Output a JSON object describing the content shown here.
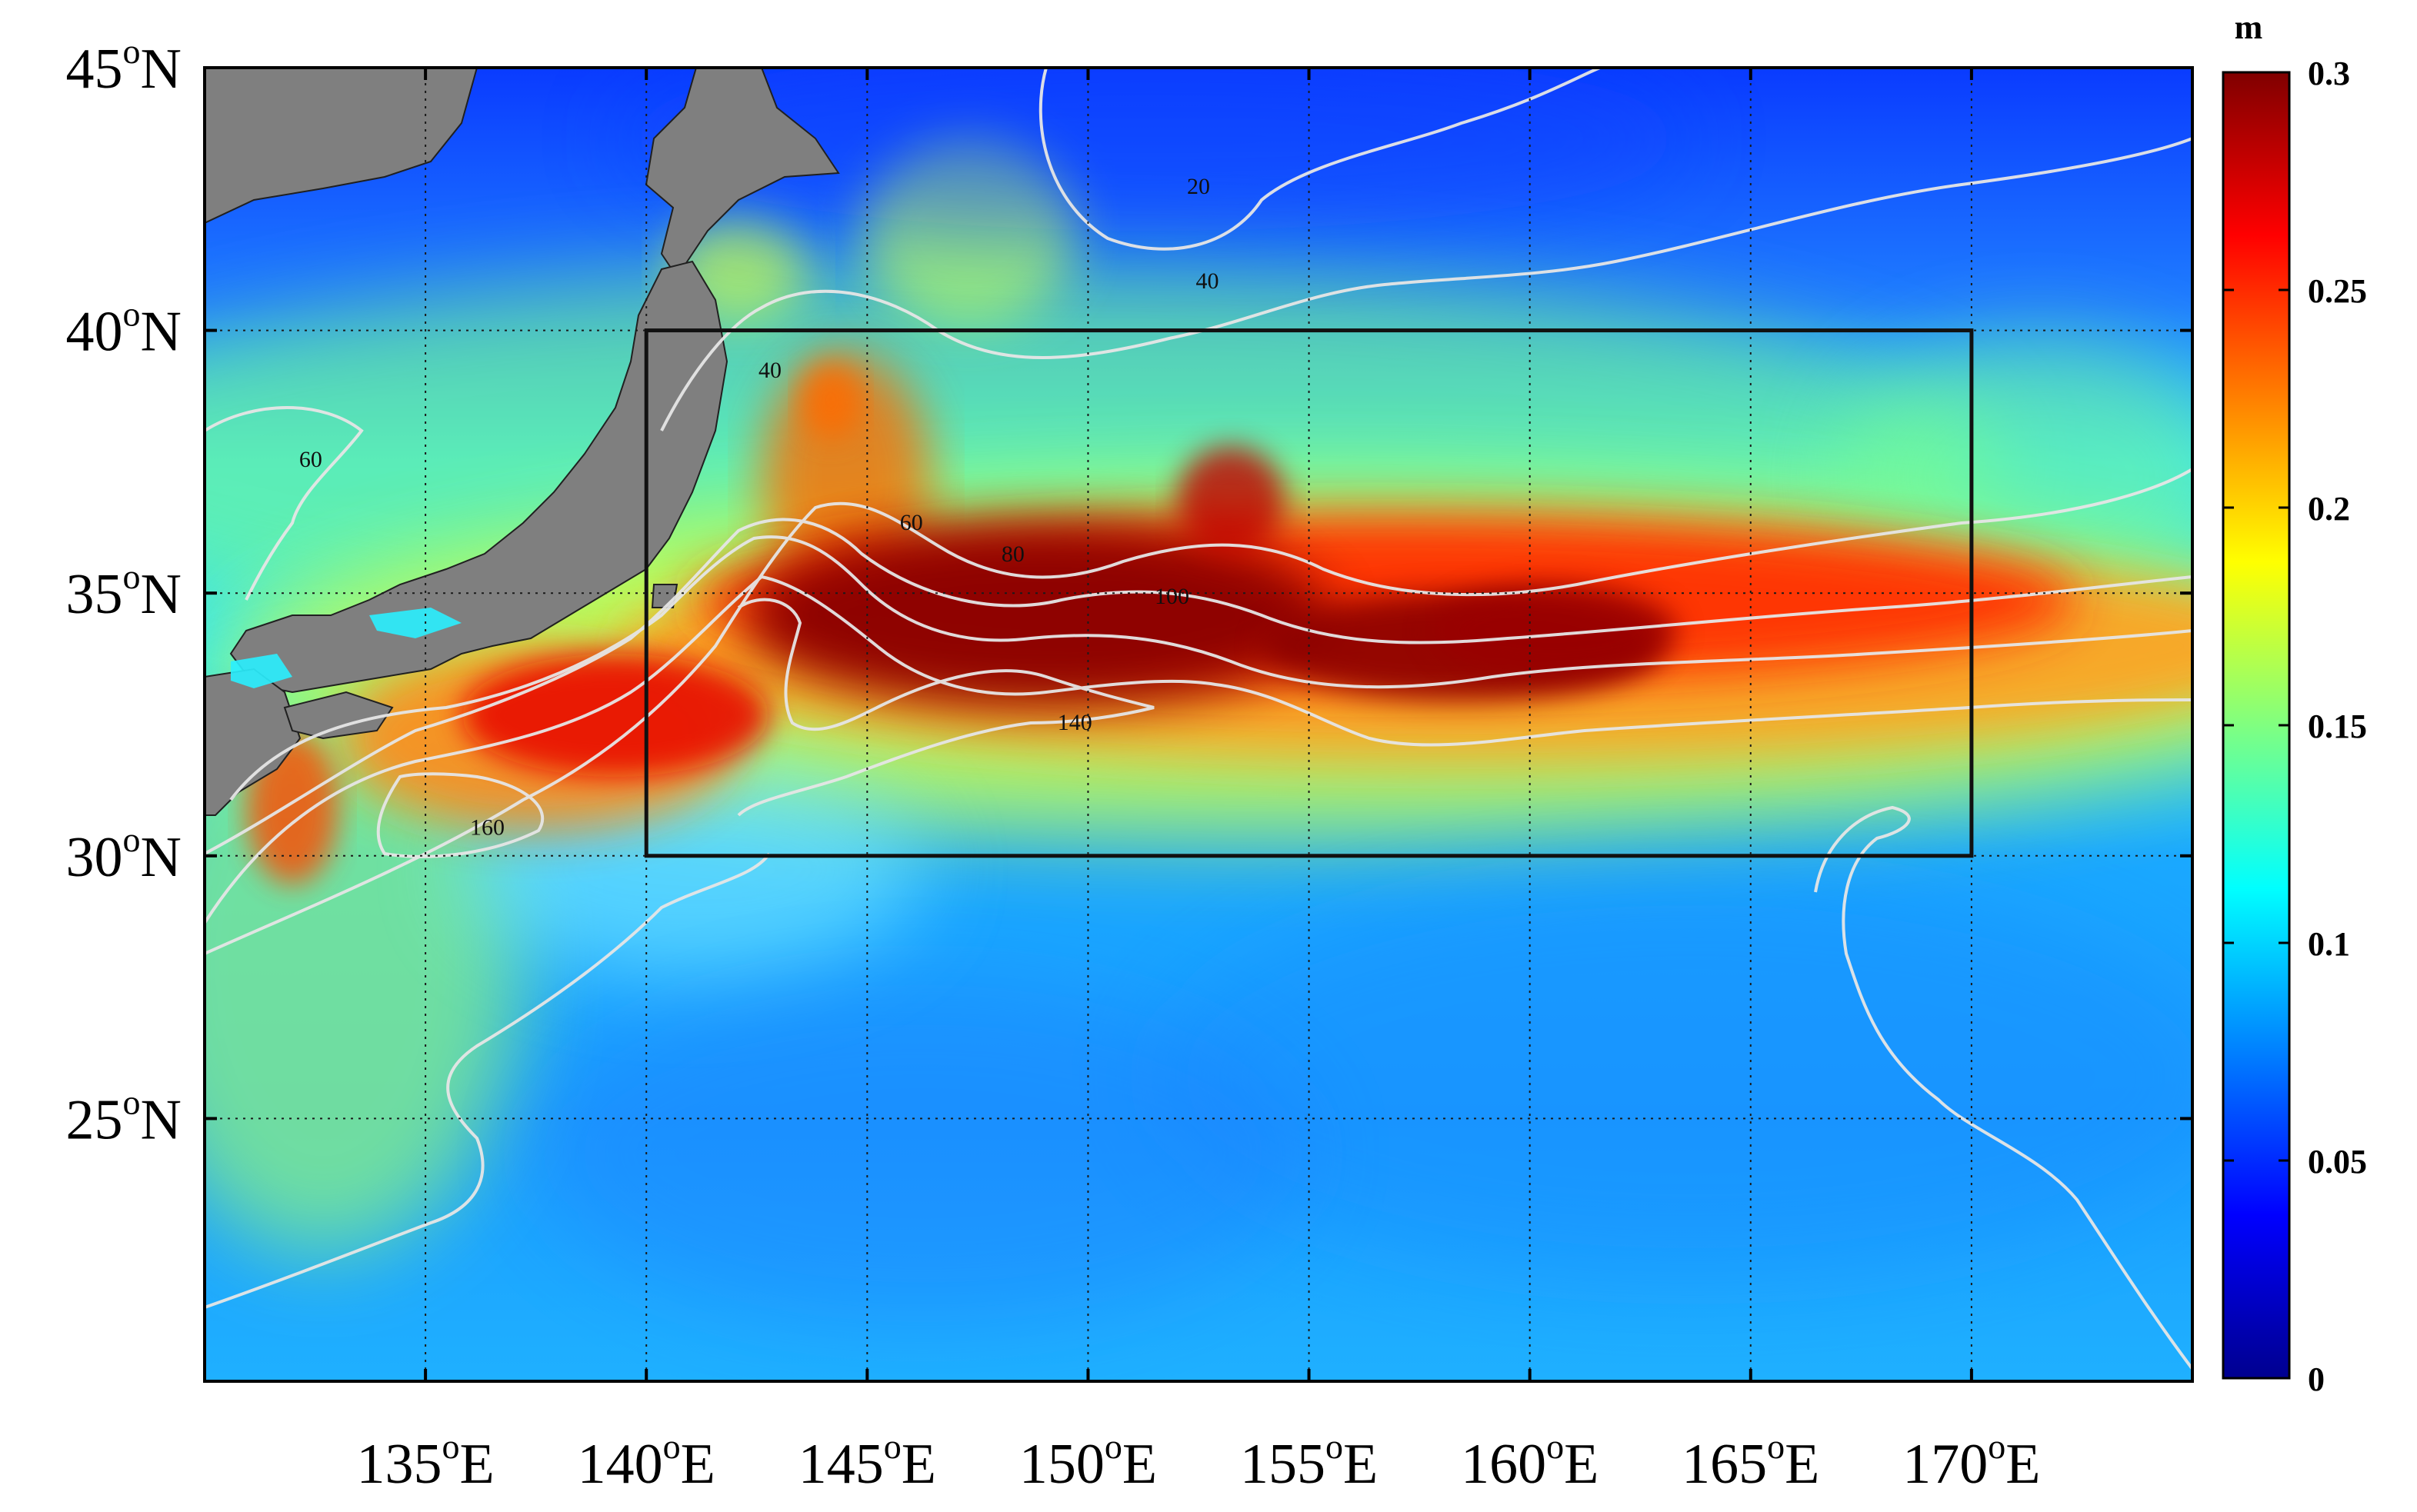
{
  "map": {
    "lon_range": [
      130,
      175
    ],
    "lat_range": [
      20,
      45
    ],
    "lon_ticks": [
      {
        "value": 135,
        "deg": "135",
        "sup": "o",
        "hemi": "E"
      },
      {
        "value": 140,
        "deg": "140",
        "sup": "o",
        "hemi": "E"
      },
      {
        "value": 145,
        "deg": "145",
        "sup": "o",
        "hemi": "E"
      },
      {
        "value": 150,
        "deg": "150",
        "sup": "o",
        "hemi": "E"
      },
      {
        "value": 155,
        "deg": "155",
        "sup": "o",
        "hemi": "E"
      },
      {
        "value": 160,
        "deg": "160",
        "sup": "o",
        "hemi": "E"
      },
      {
        "value": 165,
        "deg": "165",
        "sup": "o",
        "hemi": "E"
      },
      {
        "value": 170,
        "deg": "170",
        "sup": "o",
        "hemi": "E"
      }
    ],
    "lat_ticks": [
      {
        "value": 45,
        "deg": "45",
        "sup": "o",
        "hemi": "N"
      },
      {
        "value": 40,
        "deg": "40",
        "sup": "o",
        "hemi": "N"
      },
      {
        "value": 35,
        "deg": "35",
        "sup": "o",
        "hemi": "N"
      },
      {
        "value": 30,
        "deg": "30",
        "sup": "o",
        "hemi": "N"
      },
      {
        "value": 25,
        "deg": "25",
        "sup": "o",
        "hemi": "N"
      }
    ],
    "grid": "dotted",
    "land_color": "#7f7f7f",
    "study_box": {
      "lon": [
        140,
        170
      ],
      "lat": [
        30,
        40
      ]
    },
    "anomaly_band": {
      "description_values": "sea surface height variability, peak along ~34-35N Kuroshio Extension",
      "core_value": 0.3
    },
    "contours": {
      "color": "#e6e6e6",
      "labels": [
        {
          "text": "20",
          "lon": 152.5,
          "lat": 42.6
        },
        {
          "text": "40",
          "lon": 152.7,
          "lat": 40.8
        },
        {
          "text": "40",
          "lon": 142.8,
          "lat": 39.1
        },
        {
          "text": "60",
          "lon": 132.4,
          "lat": 37.4
        },
        {
          "text": "60",
          "lon": 146.0,
          "lat": 36.2
        },
        {
          "text": "80",
          "lon": 148.3,
          "lat": 35.6
        },
        {
          "text": "100",
          "lon": 151.9,
          "lat": 34.8
        },
        {
          "text": "140",
          "lon": 149.7,
          "lat": 32.4
        },
        {
          "text": "160",
          "lon": 136.4,
          "lat": 30.4
        }
      ]
    }
  },
  "colorbar": {
    "unit": "m",
    "range": [
      0,
      0.3
    ],
    "ticks": [
      {
        "value": 0.3,
        "label": "0.3"
      },
      {
        "value": 0.25,
        "label": "0.25"
      },
      {
        "value": 0.2,
        "label": "0.2"
      },
      {
        "value": 0.15,
        "label": "0.15"
      },
      {
        "value": 0.1,
        "label": "0.1"
      },
      {
        "value": 0.05,
        "label": "0.05"
      },
      {
        "value": 0,
        "label": "0"
      }
    ],
    "colormap": [
      "#00008f",
      "#0000ff",
      "#0080ff",
      "#00ffff",
      "#80ff80",
      "#ffff00",
      "#ff8000",
      "#ff0000",
      "#800000"
    ]
  }
}
